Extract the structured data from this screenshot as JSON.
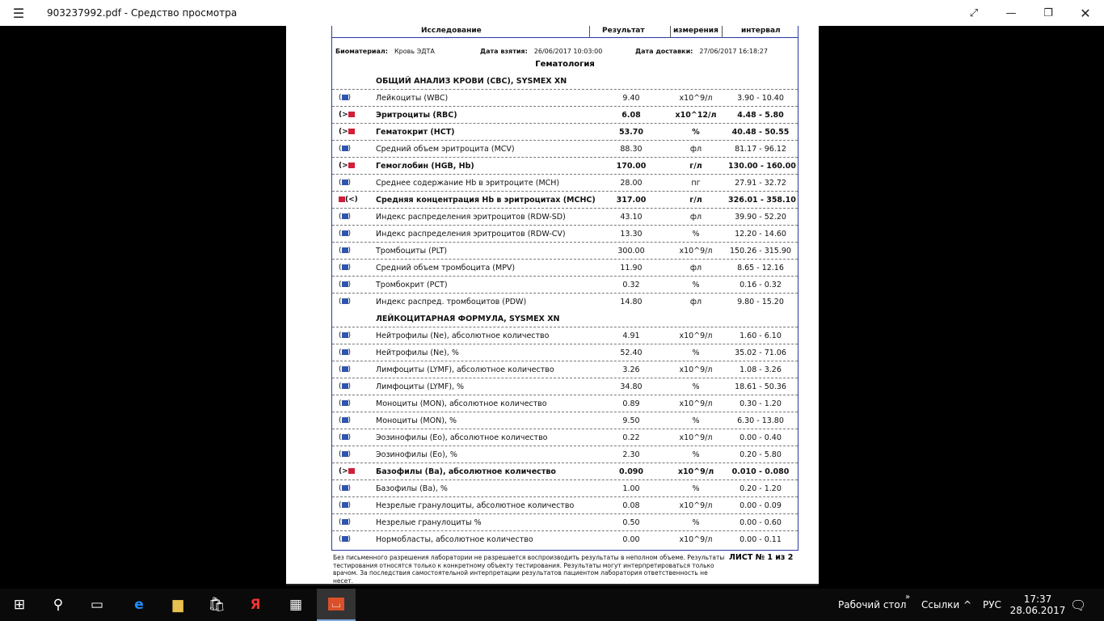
{
  "window": {
    "title": "903237992.pdf - Средство просмотра"
  },
  "doc": {
    "header": {
      "col1": "Исследование",
      "col2": "Результат",
      "col3": "измерения",
      "col4": "интервал"
    },
    "biomaterial_label": "Биоматериал:",
    "biomaterial": "Кровь ЭДТА",
    "taken_label": "Дата взятия:",
    "taken": "26/06/2017 10:03:00",
    "delivered_label": "Дата доставки:",
    "delivered": "27/06/2017 16:18:27",
    "section": "Гематология",
    "groups": [
      "ОБЩИЙ АНАЛИЗ КРОВИ (CBC), SYSMEX XN",
      "ЛЕЙКОЦИТАРНАЯ ФОРМУЛА, SYSMEX XN"
    ],
    "rows": [
      {
        "name": "Лейкоциты (WBC)",
        "result": "9.40",
        "unit": "x10^9/л",
        "range": "3.90 - 10.40",
        "flag": "normal"
      },
      {
        "name": "Эритроциты (RBC)",
        "result": "6.08",
        "unit": "x10^12/л",
        "range": "4.48 - 5.80",
        "flag": "high"
      },
      {
        "name": "Гематокрит (HCT)",
        "result": "53.70",
        "unit": "%",
        "range": "40.48 - 50.55",
        "flag": "high"
      },
      {
        "name": "Средний объем эритроцита (MCV)",
        "result": "88.30",
        "unit": "фл",
        "range": "81.17 - 96.12",
        "flag": "normal"
      },
      {
        "name": "Гемоглобин (HGB, Hb)",
        "result": "170.00",
        "unit": "г/л",
        "range": "130.00 - 160.00",
        "flag": "high"
      },
      {
        "name": "Среднее содержание Hb в эритроците (MCH)",
        "result": "28.00",
        "unit": "пг",
        "range": "27.91 - 32.72",
        "flag": "normal"
      },
      {
        "name": "Средняя концентрация Hb в эритроцитах (MCHC)",
        "result": "317.00",
        "unit": "г/л",
        "range": "326.01 - 358.10",
        "flag": "low"
      },
      {
        "name": "Индекс распределения эритроцитов (RDW-SD)",
        "result": "43.10",
        "unit": "фл",
        "range": "39.90 - 52.20",
        "flag": "normal"
      },
      {
        "name": "Индекс распределения эритроцитов (RDW-CV)",
        "result": "13.30",
        "unit": "%",
        "range": "12.20 - 14.60",
        "flag": "normal"
      },
      {
        "name": "Тромбоциты (PLT)",
        "result": "300.00",
        "unit": "x10^9/л",
        "range": "150.26 - 315.90",
        "flag": "normal"
      },
      {
        "name": "Средний объем тромбоцита (MPV)",
        "result": "11.90",
        "unit": "фл",
        "range": "8.65 - 12.16",
        "flag": "normal"
      },
      {
        "name": "Тромбокрит (PCT)",
        "result": "0.32",
        "unit": "%",
        "range": "0.16 - 0.32",
        "flag": "normal"
      },
      {
        "name": "Индекс распред. тромбоцитов (PDW)",
        "result": "14.80",
        "unit": "фл",
        "range": "9.80 - 15.20",
        "flag": "normal"
      },
      {
        "name": "Нейтрофилы (Ne), абсолютное количество",
        "result": "4.91",
        "unit": "x10^9/л",
        "range": "1.60 - 6.10",
        "flag": "normal"
      },
      {
        "name": "Нейтрофилы (Ne), %",
        "result": "52.40",
        "unit": "%",
        "range": "35.02 - 71.06",
        "flag": "normal"
      },
      {
        "name": "Лимфоциты (LYMF), абсолютное количество",
        "result": "3.26",
        "unit": "x10^9/л",
        "range": "1.08 - 3.26",
        "flag": "normal"
      },
      {
        "name": "Лимфоциты (LYMF), %",
        "result": "34.80",
        "unit": "%",
        "range": "18.61 - 50.36",
        "flag": "normal"
      },
      {
        "name": "Моноциты (MON), абсолютное количество",
        "result": "0.89",
        "unit": "x10^9/л",
        "range": "0.30 - 1.20",
        "flag": "normal"
      },
      {
        "name": "Моноциты (MON), %",
        "result": "9.50",
        "unit": "%",
        "range": "6.30 - 13.80",
        "flag": "normal"
      },
      {
        "name": "Эозинофилы (Eo), абсолютное количество",
        "result": "0.22",
        "unit": "x10^9/л",
        "range": "0.00 - 0.40",
        "flag": "normal"
      },
      {
        "name": "Эозинофилы (Eo), %",
        "result": "2.30",
        "unit": "%",
        "range": "0.20 - 5.80",
        "flag": "normal"
      },
      {
        "name": "Базофилы (Ba), абсолютное количество",
        "result": "0.090",
        "unit": "x10^9/л",
        "range": "0.010 - 0.080",
        "flag": "high"
      },
      {
        "name": "Базофилы (Ba), %",
        "result": "1.00",
        "unit": "%",
        "range": "0.20 - 1.20",
        "flag": "normal"
      },
      {
        "name": "Незрелые гранулоциты, абсолютное количество",
        "result": "0.08",
        "unit": "x10^9/л",
        "range": "0.00 - 0.09",
        "flag": "normal"
      },
      {
        "name": "Незрелые гранулоциты %",
        "result": "0.50",
        "unit": "%",
        "range": "0.00 - 0.60",
        "flag": "normal"
      },
      {
        "name": "Нормобласты, абсолютное количество",
        "result": "0.00",
        "unit": "x10^9/л",
        "range": "0.00 - 0.11",
        "flag": "normal"
      }
    ],
    "footer": "Без письменного разрешения лаборатории не разрешается воспроизводить результаты в неполном объеме. Результаты тестирования относятся только к конкретному объекту тестирования. Результаты могут интерпретироваться только врачом. За последствия самостоятельной интерпретации результатов пациентом лаборатория ответственность не несет.",
    "sheet": "ЛИСТ № 1 из 2"
  },
  "colors": {
    "normal_flag": "#2f55b0",
    "abnormal_flag": "#d0203a",
    "table_border": "#2a3aa0"
  },
  "taskbar": {
    "desktop": "Рабочий стол",
    "links": "Ссылки",
    "lang": "РУС",
    "time": "17:37",
    "date": "28.06.2017"
  }
}
